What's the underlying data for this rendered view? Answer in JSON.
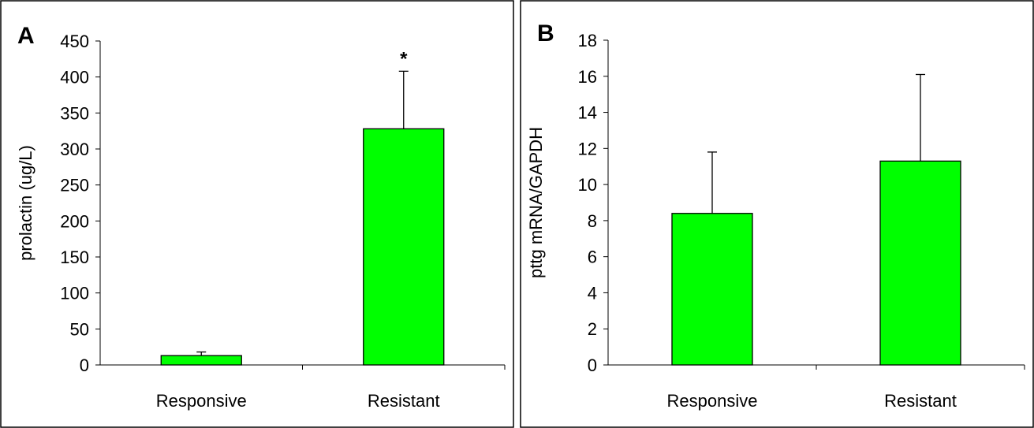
{
  "chart_data": [
    {
      "type": "bar",
      "panel_label": "A",
      "categories": [
        "Responsive",
        "Resistant"
      ],
      "values": [
        13,
        328
      ],
      "error_bars": [
        5,
        80
      ],
      "annotations": [
        {
          "category": "Resistant",
          "text": "*"
        }
      ],
      "xlabel": "",
      "ylabel": "prolactin (ug/L)",
      "ylim": [
        0,
        450
      ],
      "yticks": [
        0,
        50,
        100,
        150,
        200,
        250,
        300,
        350,
        400,
        450
      ],
      "grid": false,
      "bar_color": "#00ff00"
    },
    {
      "type": "bar",
      "panel_label": "B",
      "categories": [
        "Responsive",
        "Resistant"
      ],
      "values": [
        8.4,
        11.3
      ],
      "error_bars": [
        3.4,
        4.8
      ],
      "annotations": [],
      "xlabel": "",
      "ylabel": "pttg mRNA/GAPDH",
      "ylim": [
        0,
        18
      ],
      "yticks": [
        0,
        2,
        4,
        6,
        8,
        10,
        12,
        14,
        16,
        18
      ],
      "grid": false,
      "bar_color": "#00ff00"
    }
  ]
}
